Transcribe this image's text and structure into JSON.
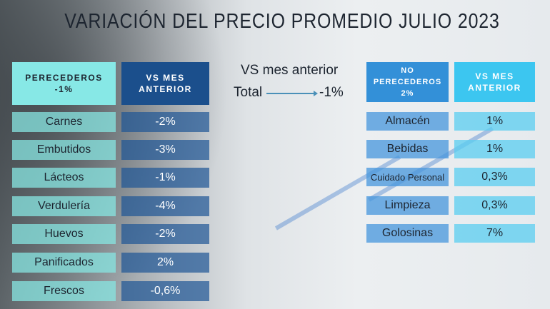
{
  "title": "VARIACIÓN DEL PRECIO PROMEDIO JULIO 2023",
  "summary": {
    "label": "VS mes anterior",
    "total_label": "Total",
    "total_value": "-1%"
  },
  "perecederos": {
    "header": "PERECEDEROS",
    "header_value": "-1%",
    "vs_header": "VS MES ANTERIOR",
    "rows": [
      {
        "label": "Carnes",
        "value": "-2%"
      },
      {
        "label": "Embutidos",
        "value": "-3%"
      },
      {
        "label": "Lácteos",
        "value": "-1%"
      },
      {
        "label": "Verdulería",
        "value": "-4%"
      },
      {
        "label": "Huevos",
        "value": "-2%"
      },
      {
        "label": "Panificados",
        "value": "2%"
      },
      {
        "label": "Frescos",
        "value": "-0,6%"
      }
    ]
  },
  "no_perecederos": {
    "header": "NO PERECEDEROS",
    "header_value": "2%",
    "vs_header": "VS MES ANTERIOR",
    "rows": [
      {
        "label": "Almacén",
        "value": "1%"
      },
      {
        "label": "Bebidas",
        "value": "1%"
      },
      {
        "label": "Cuidado Personal",
        "value": "0,3%"
      },
      {
        "label": "Limpieza",
        "value": "0,3%"
      },
      {
        "label": "Golosinas",
        "value": "7%"
      }
    ]
  },
  "colors": {
    "perecederos_header": "#87e8e6",
    "vs_header_dark": "#1b4f8c",
    "no_perecederos_header": "#3390d8",
    "vs_header_light": "#3cc6f0"
  }
}
